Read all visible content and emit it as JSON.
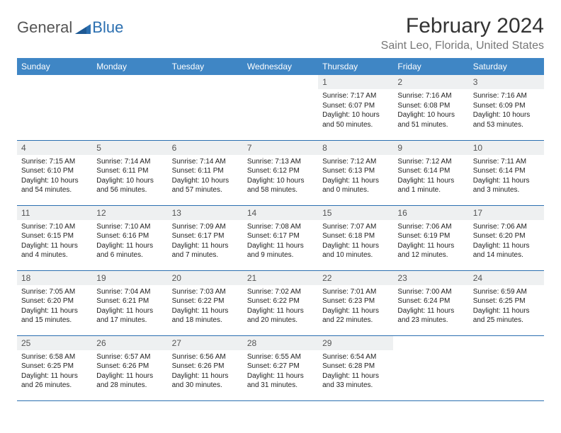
{
  "logo": {
    "general": "General",
    "blue": "Blue"
  },
  "title": "February 2024",
  "location": "Saint Leo, Florida, United States",
  "colors": {
    "header_bg": "#3f86c5",
    "header_text": "#ffffff",
    "band_bg": "#eef0f1",
    "border": "#2b6fb0",
    "title_color": "#333333",
    "location_color": "#777777",
    "body_text": "#222222",
    "logo_gray": "#555555",
    "logo_blue": "#2b6fb0",
    "background": "#ffffff"
  },
  "typography": {
    "month_title_fontsize": 30,
    "location_fontsize": 16,
    "day_header_fontsize": 12,
    "daynum_fontsize": 12,
    "dayinfo_fontsize": 10
  },
  "day_headers": [
    "Sunday",
    "Monday",
    "Tuesday",
    "Wednesday",
    "Thursday",
    "Friday",
    "Saturday"
  ],
  "weeks": [
    [
      null,
      null,
      null,
      null,
      {
        "n": "1",
        "sunrise": "7:17 AM",
        "sunset": "6:07 PM",
        "dl1": "Daylight: 10 hours",
        "dl2": "and 50 minutes."
      },
      {
        "n": "2",
        "sunrise": "7:16 AM",
        "sunset": "6:08 PM",
        "dl1": "Daylight: 10 hours",
        "dl2": "and 51 minutes."
      },
      {
        "n": "3",
        "sunrise": "7:16 AM",
        "sunset": "6:09 PM",
        "dl1": "Daylight: 10 hours",
        "dl2": "and 53 minutes."
      }
    ],
    [
      {
        "n": "4",
        "sunrise": "7:15 AM",
        "sunset": "6:10 PM",
        "dl1": "Daylight: 10 hours",
        "dl2": "and 54 minutes."
      },
      {
        "n": "5",
        "sunrise": "7:14 AM",
        "sunset": "6:11 PM",
        "dl1": "Daylight: 10 hours",
        "dl2": "and 56 minutes."
      },
      {
        "n": "6",
        "sunrise": "7:14 AM",
        "sunset": "6:11 PM",
        "dl1": "Daylight: 10 hours",
        "dl2": "and 57 minutes."
      },
      {
        "n": "7",
        "sunrise": "7:13 AM",
        "sunset": "6:12 PM",
        "dl1": "Daylight: 10 hours",
        "dl2": "and 58 minutes."
      },
      {
        "n": "8",
        "sunrise": "7:12 AM",
        "sunset": "6:13 PM",
        "dl1": "Daylight: 11 hours",
        "dl2": "and 0 minutes."
      },
      {
        "n": "9",
        "sunrise": "7:12 AM",
        "sunset": "6:14 PM",
        "dl1": "Daylight: 11 hours",
        "dl2": "and 1 minute."
      },
      {
        "n": "10",
        "sunrise": "7:11 AM",
        "sunset": "6:14 PM",
        "dl1": "Daylight: 11 hours",
        "dl2": "and 3 minutes."
      }
    ],
    [
      {
        "n": "11",
        "sunrise": "7:10 AM",
        "sunset": "6:15 PM",
        "dl1": "Daylight: 11 hours",
        "dl2": "and 4 minutes."
      },
      {
        "n": "12",
        "sunrise": "7:10 AM",
        "sunset": "6:16 PM",
        "dl1": "Daylight: 11 hours",
        "dl2": "and 6 minutes."
      },
      {
        "n": "13",
        "sunrise": "7:09 AM",
        "sunset": "6:17 PM",
        "dl1": "Daylight: 11 hours",
        "dl2": "and 7 minutes."
      },
      {
        "n": "14",
        "sunrise": "7:08 AM",
        "sunset": "6:17 PM",
        "dl1": "Daylight: 11 hours",
        "dl2": "and 9 minutes."
      },
      {
        "n": "15",
        "sunrise": "7:07 AM",
        "sunset": "6:18 PM",
        "dl1": "Daylight: 11 hours",
        "dl2": "and 10 minutes."
      },
      {
        "n": "16",
        "sunrise": "7:06 AM",
        "sunset": "6:19 PM",
        "dl1": "Daylight: 11 hours",
        "dl2": "and 12 minutes."
      },
      {
        "n": "17",
        "sunrise": "7:06 AM",
        "sunset": "6:20 PM",
        "dl1": "Daylight: 11 hours",
        "dl2": "and 14 minutes."
      }
    ],
    [
      {
        "n": "18",
        "sunrise": "7:05 AM",
        "sunset": "6:20 PM",
        "dl1": "Daylight: 11 hours",
        "dl2": "and 15 minutes."
      },
      {
        "n": "19",
        "sunrise": "7:04 AM",
        "sunset": "6:21 PM",
        "dl1": "Daylight: 11 hours",
        "dl2": "and 17 minutes."
      },
      {
        "n": "20",
        "sunrise": "7:03 AM",
        "sunset": "6:22 PM",
        "dl1": "Daylight: 11 hours",
        "dl2": "and 18 minutes."
      },
      {
        "n": "21",
        "sunrise": "7:02 AM",
        "sunset": "6:22 PM",
        "dl1": "Daylight: 11 hours",
        "dl2": "and 20 minutes."
      },
      {
        "n": "22",
        "sunrise": "7:01 AM",
        "sunset": "6:23 PM",
        "dl1": "Daylight: 11 hours",
        "dl2": "and 22 minutes."
      },
      {
        "n": "23",
        "sunrise": "7:00 AM",
        "sunset": "6:24 PM",
        "dl1": "Daylight: 11 hours",
        "dl2": "and 23 minutes."
      },
      {
        "n": "24",
        "sunrise": "6:59 AM",
        "sunset": "6:25 PM",
        "dl1": "Daylight: 11 hours",
        "dl2": "and 25 minutes."
      }
    ],
    [
      {
        "n": "25",
        "sunrise": "6:58 AM",
        "sunset": "6:25 PM",
        "dl1": "Daylight: 11 hours",
        "dl2": "and 26 minutes."
      },
      {
        "n": "26",
        "sunrise": "6:57 AM",
        "sunset": "6:26 PM",
        "dl1": "Daylight: 11 hours",
        "dl2": "and 28 minutes."
      },
      {
        "n": "27",
        "sunrise": "6:56 AM",
        "sunset": "6:26 PM",
        "dl1": "Daylight: 11 hours",
        "dl2": "and 30 minutes."
      },
      {
        "n": "28",
        "sunrise": "6:55 AM",
        "sunset": "6:27 PM",
        "dl1": "Daylight: 11 hours",
        "dl2": "and 31 minutes."
      },
      {
        "n": "29",
        "sunrise": "6:54 AM",
        "sunset": "6:28 PM",
        "dl1": "Daylight: 11 hours",
        "dl2": "and 33 minutes."
      },
      null,
      null
    ]
  ],
  "labels": {
    "sunrise_prefix": "Sunrise: ",
    "sunset_prefix": "Sunset: "
  }
}
